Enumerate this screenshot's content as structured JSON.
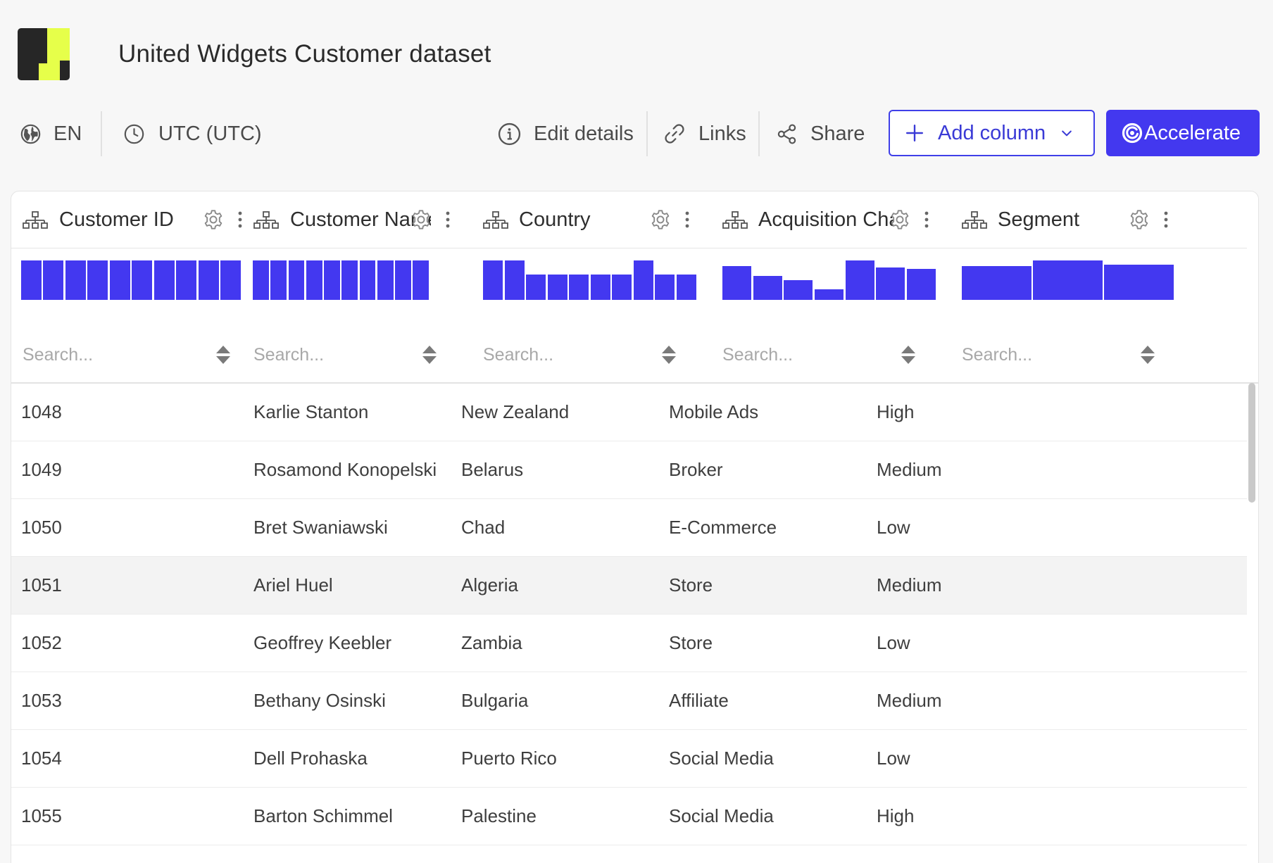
{
  "header": {
    "title": "United Widgets Customer dataset",
    "logo_colors": {
      "dark": "#262626",
      "accent": "#e6ff4a"
    }
  },
  "toolbar": {
    "language_label": "EN",
    "timezone_label": "UTC (UTC)",
    "edit_details_label": "Edit details",
    "links_label": "Links",
    "share_label": "Share",
    "add_column_label": "Add column",
    "accelerate_label": "Accelerate"
  },
  "colors": {
    "accent": "#4338ef",
    "histogram": "#4338f0",
    "row_highlight": "#f3f3f3"
  },
  "table": {
    "columns": [
      {
        "name": "Customer ID",
        "search_placeholder": "Search...",
        "histogram": [
          1,
          1,
          1,
          1,
          1,
          1,
          1,
          1,
          1,
          1
        ]
      },
      {
        "name": "Customer Name",
        "search_placeholder": "Search...",
        "histogram": [
          1,
          1,
          1,
          1,
          1,
          1,
          1,
          1,
          1,
          1
        ]
      },
      {
        "name": "Country",
        "search_placeholder": "Search...",
        "histogram": [
          1,
          1,
          0.65,
          0.65,
          0.65,
          0.65,
          0.65,
          1,
          0.65,
          0.65
        ]
      },
      {
        "name": "Acquisition Channel",
        "search_placeholder": "Search...",
        "histogram": [
          0.86,
          0.6,
          0.5,
          0.27,
          1,
          0.83,
          0.78
        ]
      },
      {
        "name": "Segment",
        "search_placeholder": "Search...",
        "histogram": [
          0.85,
          1,
          0.9
        ]
      }
    ],
    "rows": [
      {
        "id": "1048",
        "name": "Karlie Stanton",
        "country": "New Zealand",
        "channel": "Mobile Ads",
        "segment": "High"
      },
      {
        "id": "1049",
        "name": "Rosamond Konopelski",
        "country": "Belarus",
        "channel": "Broker",
        "segment": "Medium"
      },
      {
        "id": "1050",
        "name": "Bret Swaniawski",
        "country": "Chad",
        "channel": "E-Commerce",
        "segment": "Low"
      },
      {
        "id": "1051",
        "name": "Ariel Huel",
        "country": "Algeria",
        "channel": "Store",
        "segment": "Medium"
      },
      {
        "id": "1052",
        "name": "Geoffrey Keebler",
        "country": "Zambia",
        "channel": "Store",
        "segment": "Low"
      },
      {
        "id": "1053",
        "name": "Bethany Osinski",
        "country": "Bulgaria",
        "channel": "Affiliate",
        "segment": "Medium"
      },
      {
        "id": "1054",
        "name": "Dell Prohaska",
        "country": "Puerto Rico",
        "channel": "Social Media",
        "segment": "Low"
      },
      {
        "id": "1055",
        "name": "Barton Schimmel",
        "country": "Palestine",
        "channel": "Social Media",
        "segment": "High"
      },
      {
        "id": "",
        "name": "",
        "country": "",
        "channel": "",
        "segment": ""
      }
    ],
    "highlighted_row": 3
  }
}
